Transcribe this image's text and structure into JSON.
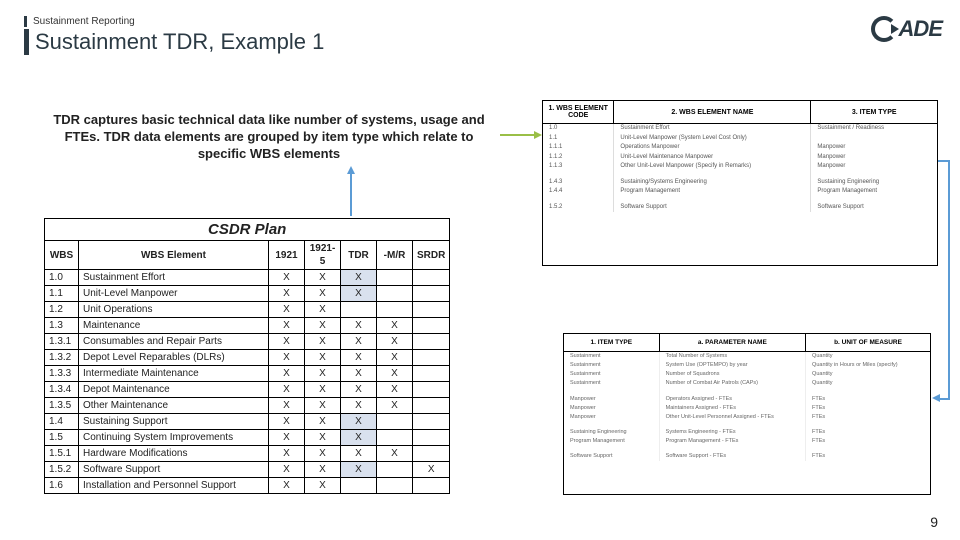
{
  "header": {
    "small": "Sustainment Reporting",
    "title": "Sustainment TDR, Example 1"
  },
  "logo_text": "ADE",
  "description": "TDR captures basic technical data like number of systems, usage and FTEs. TDR data elements are grouped by item type which relate to specific WBS elements",
  "page_number": "9",
  "csdr": {
    "title": "CSDR Plan",
    "columns": [
      "WBS",
      "WBS Element",
      "1921",
      "1921-5",
      "TDR",
      "-M/R",
      "SRDR"
    ],
    "rows": [
      {
        "wbs": "1.0",
        "el": "Sustainment Effort",
        "c": [
          "X",
          "X",
          "X",
          "",
          ""
        ],
        "hl": "TDR"
      },
      {
        "wbs": "1.1",
        "el": "Unit-Level Manpower",
        "c": [
          "X",
          "X",
          "X",
          "",
          ""
        ],
        "hl": "TDR"
      },
      {
        "wbs": "1.2",
        "el": "Unit Operations",
        "c": [
          "X",
          "X",
          "",
          "",
          ""
        ],
        "hl": ""
      },
      {
        "wbs": "1.3",
        "el": "Maintenance",
        "c": [
          "X",
          "X",
          "X",
          "X",
          ""
        ],
        "hl": ""
      },
      {
        "wbs": "1.3.1",
        "el": "Consumables and Repair Parts",
        "c": [
          "X",
          "X",
          "X",
          "X",
          ""
        ],
        "hl": ""
      },
      {
        "wbs": "1.3.2",
        "el": "Depot Level Reparables (DLRs)",
        "c": [
          "X",
          "X",
          "X",
          "X",
          ""
        ],
        "hl": ""
      },
      {
        "wbs": "1.3.3",
        "el": "Intermediate Maintenance",
        "c": [
          "X",
          "X",
          "X",
          "X",
          ""
        ],
        "hl": ""
      },
      {
        "wbs": "1.3.4",
        "el": "Depot Maintenance",
        "c": [
          "X",
          "X",
          "X",
          "X",
          ""
        ],
        "hl": ""
      },
      {
        "wbs": "1.3.5",
        "el": "Other Maintenance",
        "c": [
          "X",
          "X",
          "X",
          "X",
          ""
        ],
        "hl": ""
      },
      {
        "wbs": "1.4",
        "el": "Sustaining Support",
        "c": [
          "X",
          "X",
          "X",
          "",
          ""
        ],
        "hl": "TDR"
      },
      {
        "wbs": "1.5",
        "el": "Continuing System Improvements",
        "c": [
          "X",
          "X",
          "X",
          "",
          ""
        ],
        "hl": "TDR"
      },
      {
        "wbs": "1.5.1",
        "el": "Hardware Modifications",
        "c": [
          "X",
          "X",
          "X",
          "X",
          ""
        ],
        "hl": ""
      },
      {
        "wbs": "1.5.2",
        "el": "Software Support",
        "c": [
          "X",
          "X",
          "X",
          "",
          "X"
        ],
        "hl": "TDR"
      },
      {
        "wbs": "1.6",
        "el": "Installation and Personnel Support",
        "c": [
          "X",
          "X",
          "",
          "",
          ""
        ],
        "hl": ""
      }
    ]
  },
  "top_table": {
    "headers": [
      "1. WBS ELEMENT CODE",
      "2. WBS ELEMENT NAME",
      "3. ITEM TYPE"
    ],
    "groups": [
      [
        {
          "c": "1.0",
          "n": "Sustainment Effort",
          "t": "Sustainment / Readiness"
        },
        {
          "c": "1.1",
          "n": "Unit-Level Manpower (System Level Cost Only)",
          "t": ""
        },
        {
          "c": "1.1.1",
          "n": "Operations Manpower",
          "t": "Manpower"
        },
        {
          "c": "1.1.2",
          "n": "Unit-Level Maintenance Manpower",
          "t": "Manpower"
        },
        {
          "c": "1.1.3",
          "n": "Other Unit-Level Manpower (Specify in Remarks)",
          "t": "Manpower"
        }
      ],
      [
        {
          "c": "1.4.3",
          "n": "Sustaining/Systems Engineering",
          "t": "Sustaining Engineering"
        },
        {
          "c": "1.4.4",
          "n": "Program Management",
          "t": "Program Management"
        }
      ],
      [
        {
          "c": "1.5.2",
          "n": "Software Support",
          "t": "Software Support"
        }
      ]
    ]
  },
  "bot_table": {
    "headers": [
      "1. ITEM TYPE",
      "a. PARAMETER NAME",
      "b. UNIT OF MEASURE"
    ],
    "groups": [
      [
        {
          "t": "Sustainment",
          "p": "Total Number of Systems",
          "u": "Quantity"
        },
        {
          "t": "Sustainment",
          "p": "System Use (OPTEMPO) by year",
          "u": "Quantity in Hours or Miles (specify)"
        },
        {
          "t": "Sustainment",
          "p": "Number of Squadrons",
          "u": "Quantity"
        },
        {
          "t": "Sustainment",
          "p": "Number of Combat Air Patrols (CAPs)",
          "u": "Quantity"
        }
      ],
      [
        {
          "t": "Manpower",
          "p": "Operators Assigned - FTEs",
          "u": "FTEs"
        },
        {
          "t": "Manpower",
          "p": "Maintainers Assigned - FTEs",
          "u": "FTEs"
        },
        {
          "t": "Manpower",
          "p": "Other Unit-Level Personnel Assigned - FTEs",
          "u": "FTEs"
        }
      ],
      [
        {
          "t": "Sustaining Engineering",
          "p": "Systems Engineering - FTEs",
          "u": "FTEs"
        },
        {
          "t": "Program Management",
          "p": "Program Management - FTEs",
          "u": "FTEs"
        }
      ],
      [
        {
          "t": "Software Support",
          "p": "Software Support - FTEs",
          "u": "FTEs"
        }
      ]
    ]
  }
}
